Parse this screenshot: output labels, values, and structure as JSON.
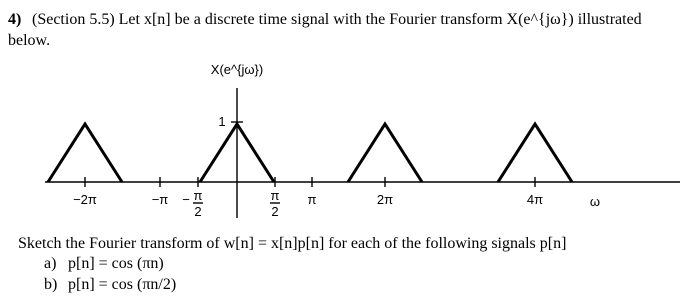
{
  "problem": {
    "number": "4)",
    "lines": [
      "(Section 5.5) Let x[n] be a discrete time signal with the Fourier transform X(e^{jω}) illustrated",
      "below."
    ]
  },
  "figure": {
    "ylabel": "X(e^{jω})",
    "peak_label": "1",
    "ticks": [
      "−2π",
      "−π",
      {
        "sign": "−",
        "num": "π",
        "den": "2"
      },
      {
        "sign": "",
        "num": "π",
        "den": "2"
      },
      "π",
      "2π",
      "4π"
    ],
    "axis_label": "ω"
  },
  "question": "Sketch the Fourier transform of w[n] = x[n]p[n] for each of the following signals p[n]",
  "items": [
    {
      "marker": "a)",
      "text": "p[n] = cos (πn)"
    },
    {
      "marker": "b)",
      "text": "p[n] = cos (πn/2)"
    }
  ]
}
